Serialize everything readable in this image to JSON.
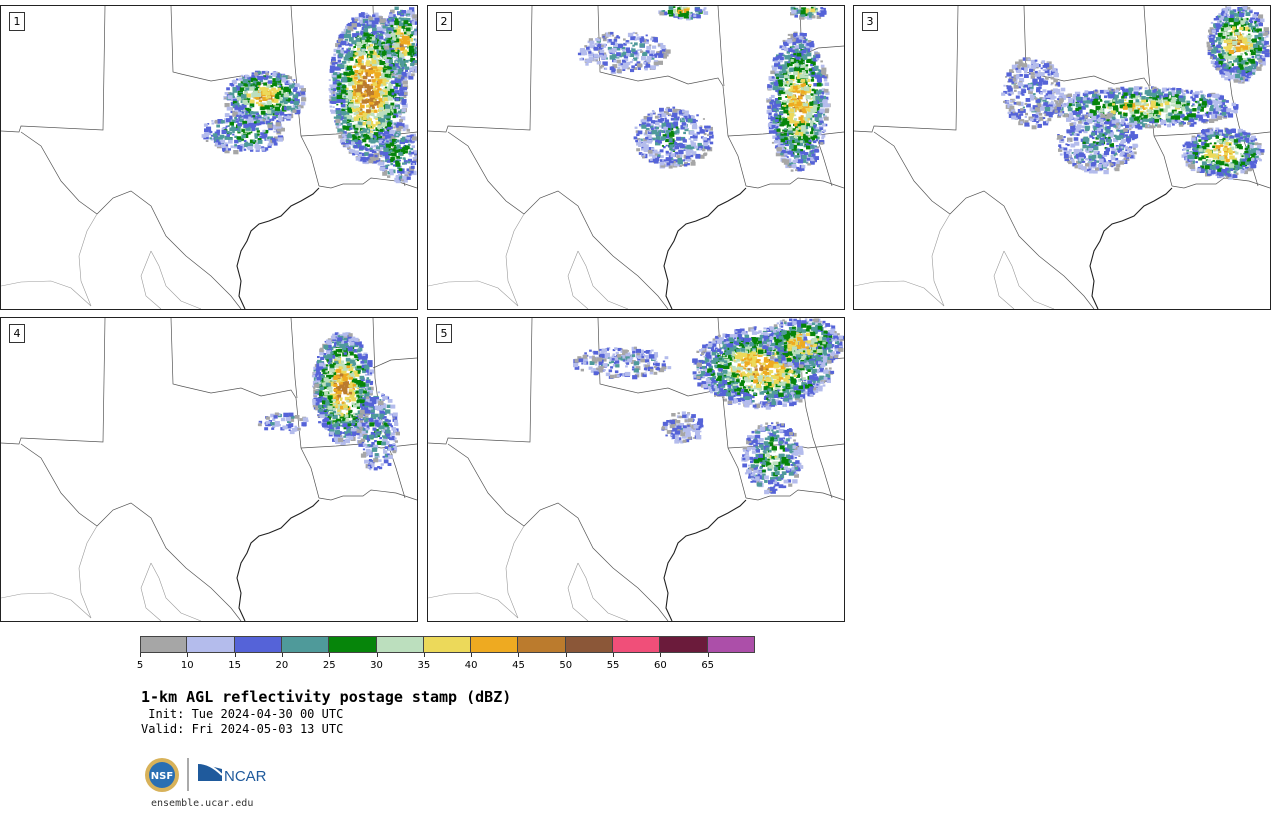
{
  "panels": [
    {
      "label": "1"
    },
    {
      "label": "2"
    },
    {
      "label": "3"
    },
    {
      "label": "4"
    },
    {
      "label": "5"
    }
  ],
  "colorbar": {
    "ticks": [
      "5",
      "10",
      "15",
      "20",
      "25",
      "30",
      "35",
      "40",
      "45",
      "50",
      "55",
      "60",
      "65"
    ],
    "colors": [
      "#a6a6a6",
      "#b4bcec",
      "#5563d8",
      "#4f9a9a",
      "#06850a",
      "#bcdfbe",
      "#ecd95a",
      "#eeaa21",
      "#bb7b2d",
      "#8b5738",
      "#f04f79",
      "#6b1b3b",
      "#ac4fa9"
    ]
  },
  "title": "1-km AGL reflectivity postage stamp (dBZ)",
  "init_line": " Init: Tue 2024-04-30 00 UTC",
  "valid_line": "Valid: Fri 2024-05-03 13 UTC",
  "logos": {
    "nsf_text": "NSF",
    "ncar_text": "NCAR"
  },
  "url": "ensemble.ucar.edu"
}
